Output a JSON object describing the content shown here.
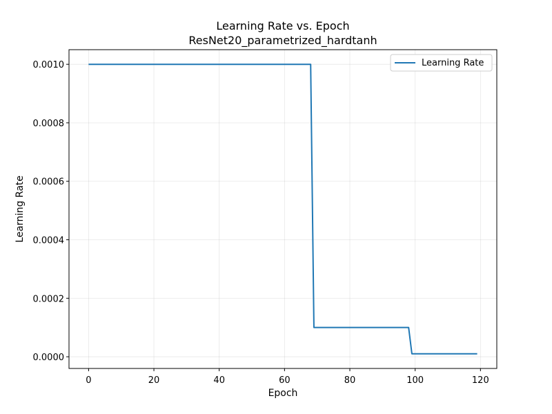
{
  "chart_data": {
    "type": "line",
    "title": "Learning Rate vs. Epoch",
    "subtitle": "ResNet20_parametrized_hardtanh",
    "xlabel": "Epoch",
    "ylabel": "Learning Rate",
    "xlim": [
      -6,
      125
    ],
    "ylim": [
      -4e-05,
      0.00105
    ],
    "xticks": [
      0,
      20,
      40,
      60,
      80,
      100,
      120
    ],
    "xtick_labels": [
      "0",
      "20",
      "40",
      "60",
      "80",
      "100",
      "120"
    ],
    "yticks": [
      0,
      0.0002,
      0.0004,
      0.0006,
      0.0008,
      0.001
    ],
    "ytick_labels": [
      "0.0000",
      "0.0002",
      "0.0004",
      "0.0006",
      "0.0008",
      "0.0010"
    ],
    "grid": true,
    "legend_position": "top-right",
    "series": [
      {
        "name": "Learning Rate",
        "color": "#1f77b4",
        "x": [
          0,
          68,
          69,
          98,
          99,
          119
        ],
        "y": [
          0.001,
          0.001,
          0.0001,
          0.0001,
          1e-05,
          1e-05
        ]
      }
    ]
  }
}
